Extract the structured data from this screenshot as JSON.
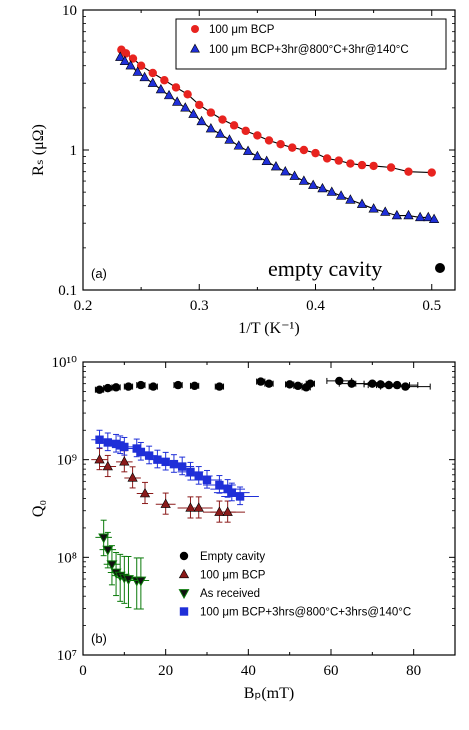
{
  "chart_data": [
    {
      "type": "scatter",
      "panel_label": "(a)",
      "annotation": "empty cavity",
      "xlabel": "1/T (K⁻¹)",
      "ylabel": "Rₛ (μΩ)",
      "xlim": [
        0.2,
        0.52
      ],
      "ylim": [
        0.1,
        10
      ],
      "yscale": "log",
      "x_ticks": [
        "0.2",
        "0.3",
        "0.4",
        "0.5"
      ],
      "y_ticks": [
        "0.1",
        "1",
        "10"
      ],
      "legend_position": "top-right",
      "series": [
        {
          "name": "100 μm BCP",
          "color": "#e8231f",
          "marker": "circle",
          "fit_line": true,
          "x": [
            0.233,
            0.237,
            0.243,
            0.25,
            0.26,
            0.27,
            0.28,
            0.29,
            0.3,
            0.31,
            0.32,
            0.33,
            0.34,
            0.35,
            0.36,
            0.37,
            0.38,
            0.39,
            0.4,
            0.41,
            0.42,
            0.43,
            0.44,
            0.45,
            0.465,
            0.48,
            0.5
          ],
          "y": [
            5.2,
            4.9,
            4.5,
            4.0,
            3.55,
            3.15,
            2.8,
            2.5,
            2.1,
            1.85,
            1.65,
            1.5,
            1.37,
            1.27,
            1.17,
            1.1,
            1.04,
            1.0,
            0.95,
            0.87,
            0.84,
            0.8,
            0.78,
            0.77,
            0.75,
            0.7,
            0.69
          ]
        },
        {
          "name": "100 μm BCP+3hr@800°C+3hr@140°C",
          "color": "#1f2fd8",
          "marker": "triangle",
          "fit_line": true,
          "x": [
            0.232,
            0.236,
            0.241,
            0.247,
            0.253,
            0.26,
            0.267,
            0.274,
            0.281,
            0.288,
            0.295,
            0.302,
            0.31,
            0.318,
            0.326,
            0.334,
            0.342,
            0.35,
            0.358,
            0.366,
            0.374,
            0.382,
            0.39,
            0.398,
            0.406,
            0.414,
            0.422,
            0.43,
            0.44,
            0.45,
            0.46,
            0.47,
            0.48,
            0.49,
            0.497,
            0.502
          ],
          "y": [
            4.6,
            4.3,
            4.0,
            3.6,
            3.3,
            3.0,
            2.7,
            2.45,
            2.2,
            2.0,
            1.8,
            1.6,
            1.42,
            1.3,
            1.18,
            1.07,
            0.98,
            0.9,
            0.83,
            0.76,
            0.7,
            0.65,
            0.6,
            0.56,
            0.53,
            0.5,
            0.47,
            0.44,
            0.41,
            0.38,
            0.36,
            0.34,
            0.34,
            0.33,
            0.33,
            0.32
          ]
        }
      ]
    },
    {
      "type": "scatter",
      "panel_label": "(b)",
      "xlabel": "Bₚ(mT)",
      "ylabel": "Q₀",
      "xlim": [
        0,
        90
      ],
      "ylim": [
        10000000.0,
        10000000000.0
      ],
      "yscale": "log",
      "x_ticks": [
        "0",
        "20",
        "40",
        "60",
        "80"
      ],
      "y_ticks": [
        "10⁷",
        "10⁸",
        "10⁹",
        "10¹⁰"
      ],
      "legend_position": "bottom-right",
      "series": [
        {
          "name": "Empty cavity",
          "color": "#000000",
          "marker": "circle",
          "x": [
            4,
            6,
            8,
            11,
            14,
            17,
            23,
            27,
            33,
            43,
            45,
            50,
            52,
            54,
            55,
            62,
            65,
            70,
            72,
            74,
            76,
            78
          ],
          "y": [
            5200000000.0,
            5400000000.0,
            5500000000.0,
            5600000000.0,
            5800000000.0,
            5600000000.0,
            5800000000.0,
            5700000000.0,
            5600000000.0,
            6300000000.0,
            6000000000.0,
            5900000000.0,
            5700000000.0,
            5500000000.0,
            6000000000.0,
            6400000000.0,
            6000000000.0,
            6000000000.0,
            5900000000.0,
            5800000000.0,
            5800000000.0,
            5600000000.0
          ],
          "xerr": [
            1,
            1,
            1,
            1,
            1,
            1,
            1,
            1,
            1,
            1,
            1,
            1,
            1,
            1,
            1,
            3,
            3,
            4,
            4,
            5,
            5,
            6
          ]
        },
        {
          "name": "100 μm BCP",
          "color": "#8b1a1a",
          "marker": "triangle",
          "x": [
            4,
            6,
            10,
            12,
            15,
            20,
            26,
            28,
            33,
            35
          ],
          "y": [
            1000000000.0,
            850000000.0,
            950000000.0,
            650000000.0,
            450000000.0,
            350000000.0,
            320000000.0,
            320000000.0,
            290000000.0,
            290000000.0
          ],
          "yerr_rel": [
            0.3,
            0.3,
            0.3,
            0.3,
            0.3,
            0.3,
            0.3,
            0.3,
            0.3,
            0.3
          ]
        },
        {
          "name": "As received",
          "color": "#0a7a0a",
          "marker": "triangle-down",
          "x": [
            5,
            6,
            7,
            8,
            9,
            10,
            11,
            13,
            14
          ],
          "y": [
            160000000.0,
            120000000.0,
            85000000.0,
            70000000.0,
            65000000.0,
            62000000.0,
            60000000.0,
            58000000.0,
            58000000.0
          ],
          "yerr_rel": [
            0.5,
            0.5,
            0.55,
            0.6,
            0.65,
            0.65,
            0.7,
            0.7,
            0.7
          ]
        },
        {
          "name": "100 μm BCP+3hrs@800°C+3hrs@140°C",
          "color": "#1f2fd8",
          "marker": "square",
          "x": [
            4,
            6,
            8,
            9,
            10,
            13,
            14,
            16,
            18,
            20,
            22,
            24,
            26,
            28,
            30,
            33,
            35,
            36,
            38
          ],
          "y": [
            1600000000.0,
            1500000000.0,
            1450000000.0,
            1400000000.0,
            1350000000.0,
            1300000000.0,
            1200000000.0,
            1100000000.0,
            1000000000.0,
            950000000.0,
            900000000.0,
            850000000.0,
            750000000.0,
            680000000.0,
            620000000.0,
            550000000.0,
            500000000.0,
            460000000.0,
            420000000.0
          ],
          "yerr_rel": [
            0.25,
            0.25,
            0.25,
            0.25,
            0.25,
            0.25,
            0.25,
            0.25,
            0.25,
            0.25,
            0.25,
            0.25,
            0.25,
            0.25,
            0.25,
            0.25,
            0.25,
            0.25,
            0.25
          ]
        }
      ]
    }
  ]
}
